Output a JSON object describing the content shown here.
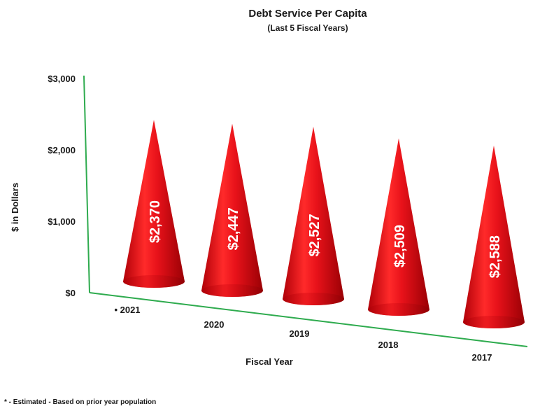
{
  "chart_data": {
    "type": "bar",
    "title": "Debt Service Per Capita",
    "subtitle": "(Last 5 Fiscal Years)",
    "xlabel": "Fiscal Year",
    "ylabel": "$ in Dollars",
    "categories": [
      "• 2021",
      "2020",
      "2019",
      "2018",
      "2017"
    ],
    "values": [
      2370,
      2447,
      2527,
      2509,
      2588
    ],
    "value_labels": [
      "$2,370",
      "$2,447",
      "$2,527",
      "$2,509",
      "$2,588"
    ],
    "ylim": [
      0,
      3000
    ],
    "yticks": [
      0,
      1000,
      2000,
      3000
    ],
    "ytick_labels": [
      "$0",
      "$1,000",
      "$2,000",
      "$3,000"
    ],
    "grid": false,
    "bar_shape": "cone",
    "colors": {
      "bar": "#e8121a",
      "bar_dark": "#a80006",
      "bar_light": "#ff4a4a",
      "axis": "#2eab4e"
    }
  },
  "footnote": "* - Estimated  - Based on prior year population"
}
